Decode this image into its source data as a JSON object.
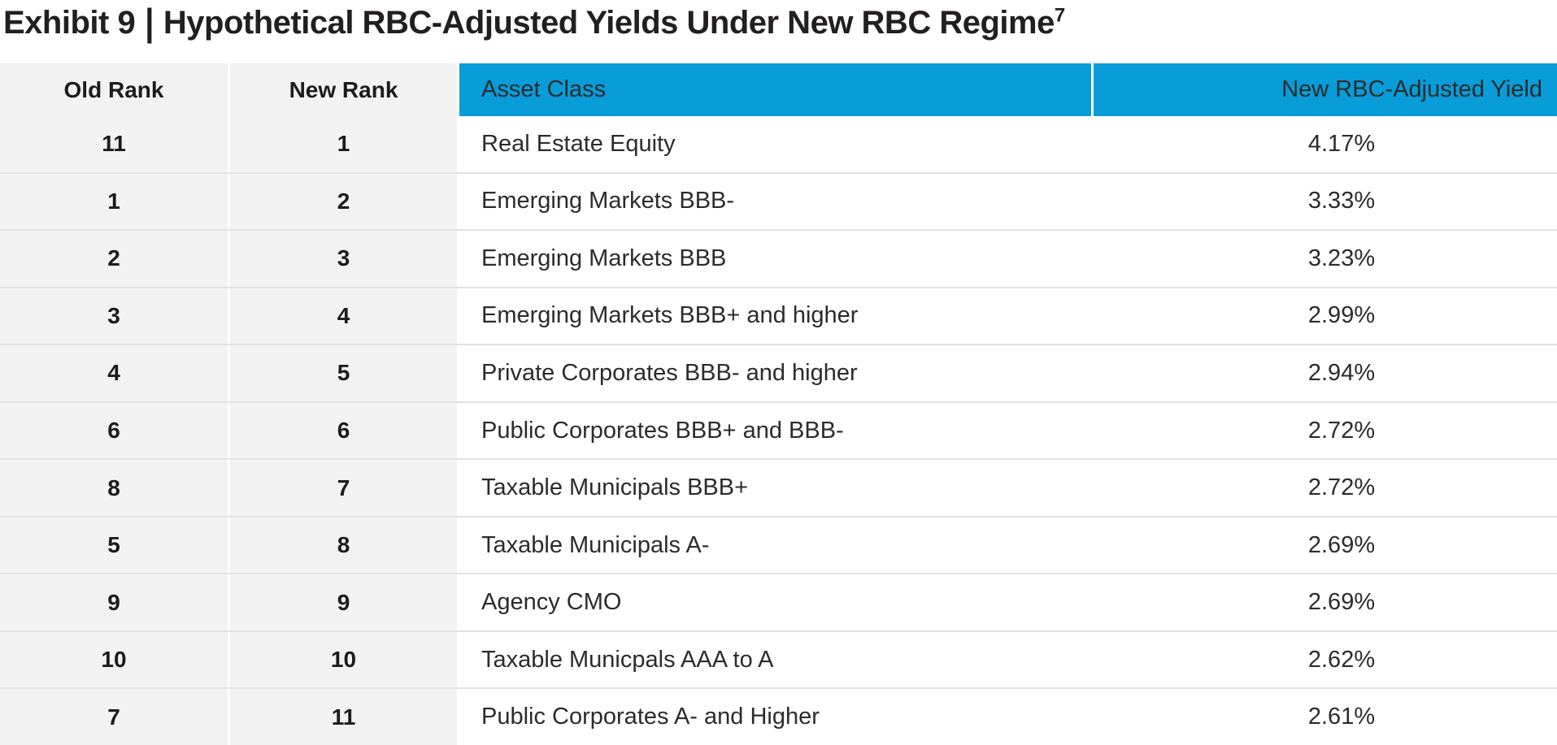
{
  "title": {
    "prefix": "Exhibit 9",
    "separator": "|",
    "main": "Hypothetical RBC-Adjusted Yields Under New RBC Regime",
    "footnote_marker": "7"
  },
  "colors": {
    "header_bg": "#089cd8",
    "header_text": "#ffffff",
    "rank_cell_bg": "#f2f2f3",
    "row_divider": "#e2e2e2",
    "title_text": "#231f20",
    "body_text": "#2c2c2c"
  },
  "table": {
    "columns": [
      {
        "label": "Old Rank"
      },
      {
        "label": "New Rank"
      },
      {
        "label": "Asset Class"
      },
      {
        "label": "New RBC-Adjusted Yield"
      }
    ],
    "rows": [
      {
        "old_rank": "11",
        "new_rank": "1",
        "asset_class": "Real Estate Equity",
        "yield": "4.17%"
      },
      {
        "old_rank": "1",
        "new_rank": "2",
        "asset_class": "Emerging Markets BBB-",
        "yield": "3.33%"
      },
      {
        "old_rank": "2",
        "new_rank": "3",
        "asset_class": "Emerging Markets BBB",
        "yield": "3.23%"
      },
      {
        "old_rank": "3",
        "new_rank": "4",
        "asset_class": "Emerging Markets BBB+ and higher",
        "yield": "2.99%"
      },
      {
        "old_rank": "4",
        "new_rank": "5",
        "asset_class": "Private Corporates BBB- and higher",
        "yield": "2.94%"
      },
      {
        "old_rank": "6",
        "new_rank": "6",
        "asset_class": "Public Corporates BBB+ and BBB-",
        "yield": "2.72%"
      },
      {
        "old_rank": "8",
        "new_rank": "7",
        "asset_class": "Taxable Municipals BBB+",
        "yield": "2.72%"
      },
      {
        "old_rank": "5",
        "new_rank": "8",
        "asset_class": "Taxable Municipals A-",
        "yield": "2.69%"
      },
      {
        "old_rank": "9",
        "new_rank": "9",
        "asset_class": "Agency CMO",
        "yield": "2.69%"
      },
      {
        "old_rank": "10",
        "new_rank": "10",
        "asset_class": "Taxable Municpals AAA to A",
        "yield": "2.62%"
      },
      {
        "old_rank": "7",
        "new_rank": "11",
        "asset_class": "Public Corporates A- and Higher",
        "yield": "2.61%"
      }
    ]
  }
}
